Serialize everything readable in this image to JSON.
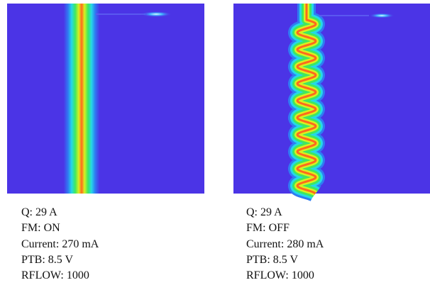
{
  "panels": [
    {
      "lines": [
        "Q: 29 A",
        "FM: ON",
        "Current: 270 mA",
        "PTB: 8.5 V",
        "RFLOW: 1000"
      ]
    },
    {
      "lines": [
        "Q: 29 A",
        "FM: OFF",
        "Current: 280 mA",
        "PTB: 8.5 V",
        "RFLOW: 1000"
      ]
    }
  ]
}
